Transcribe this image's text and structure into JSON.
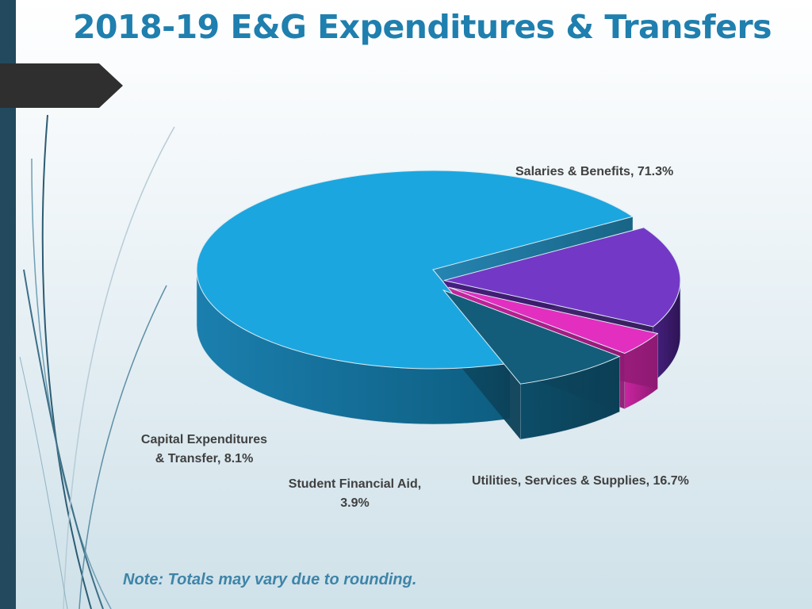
{
  "slide": {
    "title": "2018-19 E&G Expenditures & Transfers",
    "note": "Note: Totals may vary due to rounding."
  },
  "colors": {
    "title": "#1f7fae",
    "salaries": "#1ca6df",
    "utilities": "#7438c6",
    "student_aid": "#e22fc0",
    "capital": "#135d7a"
  },
  "chart_data": {
    "type": "pie",
    "title": "",
    "slices": [
      {
        "name": "Salaries & Benefits",
        "value": 71.3,
        "label": "Salaries & Benefits, 71.3%",
        "color": "#1ca6df"
      },
      {
        "name": "Utilities, Services & Supplies",
        "value": 16.7,
        "label": "Utilities, Services & Supplies, 16.7%",
        "color": "#7438c6"
      },
      {
        "name": "Student Financial Aid",
        "value": 3.9,
        "label_line1": "Student Financial Aid,",
        "label_line2": "3.9%",
        "color": "#e22fc0"
      },
      {
        "name": "Capital Expenditures & Transfer",
        "value": 8.1,
        "label_line1": "Capital Expenditures",
        "label_line2": "& Transfer, 8.1%",
        "color": "#135d7a"
      }
    ],
    "style": "3d-exploded",
    "legend": "none"
  }
}
